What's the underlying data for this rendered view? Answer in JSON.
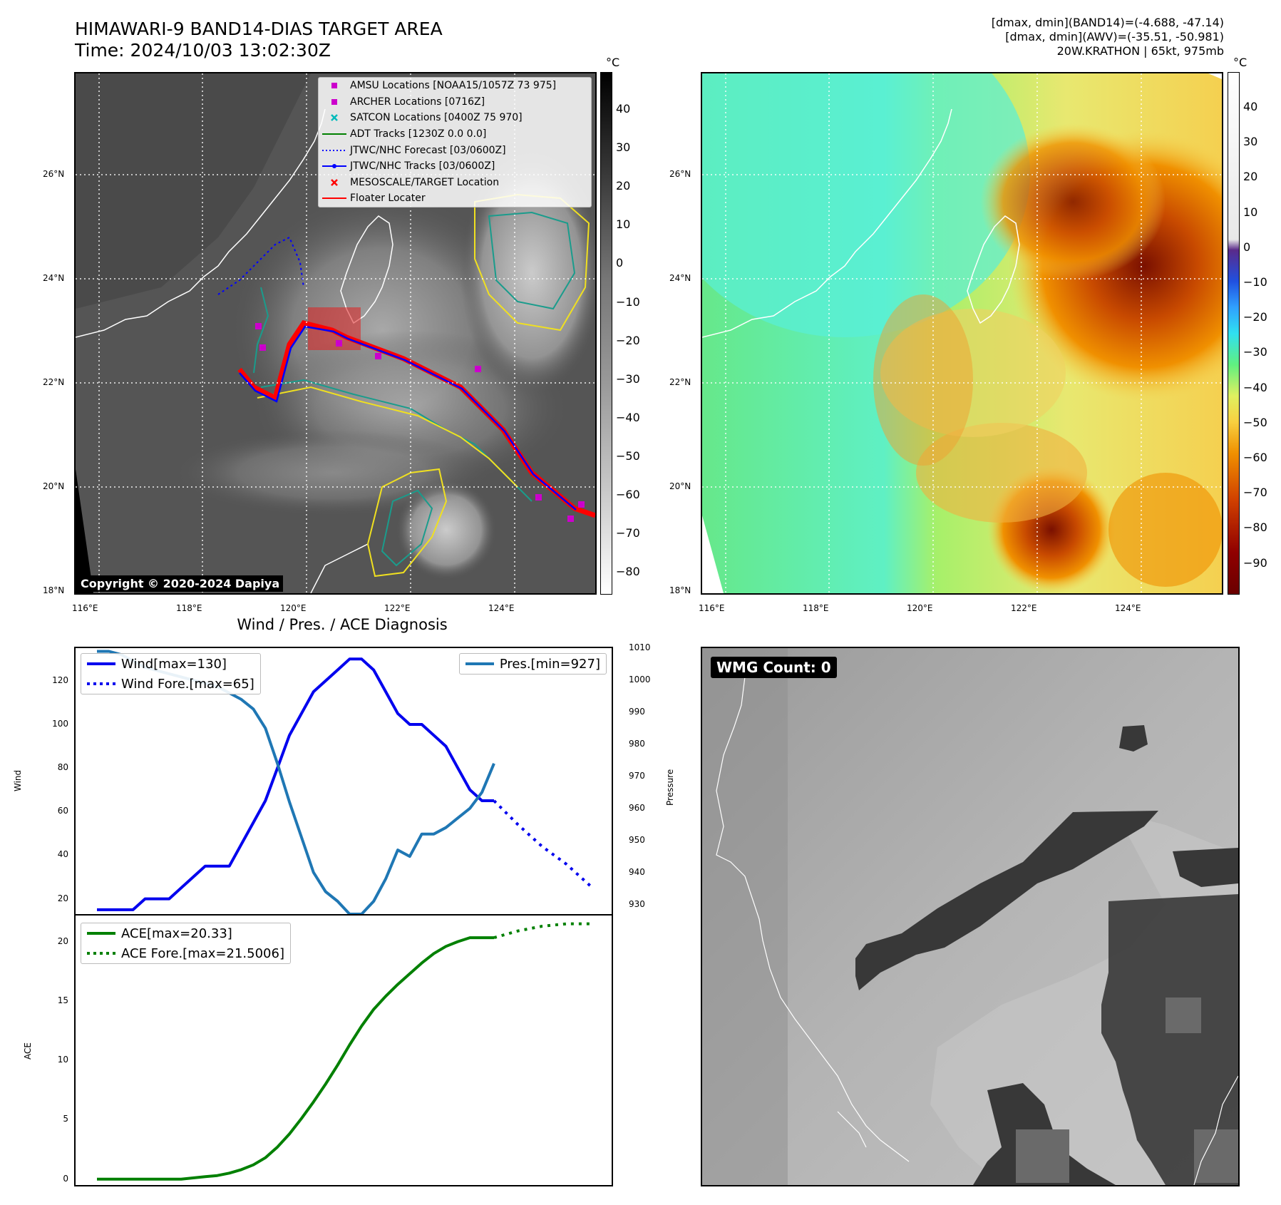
{
  "header": {
    "title_line1": "HIMAWARI-9 BAND14-DIAS TARGET AREA",
    "title_line2": "Time: 2024/10/03 13:02:30Z",
    "info_line1": "[dmax, dmin](BAND14)=(-4.688, -47.14)",
    "info_line2": "[dmax, dmin](AWV)=(-35.51, -50.981)",
    "info_line3": "20W.KRATHON | 65kt, 975mb"
  },
  "map": {
    "lon_ticks": [
      "116°E",
      "118°E",
      "120°E",
      "122°E",
      "124°E"
    ],
    "lat_ticks": [
      "26°N",
      "24°N",
      "22°N",
      "20°N",
      "18°N"
    ],
    "copyright": "Copyright © 2020-2024 Dapiya",
    "legend": [
      {
        "label": "AMSU Locations [NOAA15/1057Z 73 975]",
        "color": "#cc00cc",
        "symbol": "square"
      },
      {
        "label": "ARCHER Locations [0716Z]",
        "color": "#cc00cc",
        "symbol": "square"
      },
      {
        "label": "SATCON Locations [0400Z 75 970]",
        "color": "#00bbbb",
        "symbol": "x"
      },
      {
        "label": "ADT Tracks [1230Z 0.0 0.0]",
        "color": "#008000",
        "symbol": "line"
      },
      {
        "label": "JTWC/NHC Forecast [03/0600Z]",
        "color": "#0000ff",
        "symbol": "dotted"
      },
      {
        "label": "JTWC/NHC Tracks [03/0600Z]",
        "color": "#0000ff",
        "symbol": "line-dot"
      },
      {
        "label": "MESOSCALE/TARGET Location",
        "color": "#ff0000",
        "symbol": "x"
      },
      {
        "label": "Floater Locater",
        "color": "#ff0000",
        "symbol": "line"
      }
    ]
  },
  "colorbar_gray": {
    "unit": "°C",
    "ticks": [
      "40",
      "30",
      "20",
      "10",
      "0",
      "−10",
      "−20",
      "−30",
      "−40",
      "−50",
      "−60",
      "−70",
      "−80"
    ]
  },
  "colorbar_awv": {
    "unit": "°C",
    "ticks": [
      "40",
      "30",
      "20",
      "10",
      "0",
      "−10",
      "−20",
      "−30",
      "−40",
      "−50",
      "−60",
      "−70",
      "−80",
      "−90"
    ]
  },
  "diag": {
    "title": "Wind / Pres. / ACE Diagnosis",
    "wind_ylabel": "Wind",
    "pres_ylabel": "Pressure",
    "ace_ylabel": "ACE",
    "wind_ticks": [
      "120",
      "100",
      "80",
      "60",
      "40",
      "20"
    ],
    "pres_ticks": [
      "1010",
      "1000",
      "990",
      "980",
      "970",
      "960",
      "950",
      "940",
      "930"
    ],
    "ace_ticks": [
      "20",
      "15",
      "10",
      "5",
      "0"
    ],
    "legend_wind": "Wind[max=130]",
    "legend_wind_fore": "Wind Fore.[max=65]",
    "legend_pres": "Pres.[min=927]",
    "legend_ace": "ACE[max=20.33]",
    "legend_ace_fore": "ACE Fore.[max=21.5006]"
  },
  "wmg": {
    "label": "WMG Count: 0"
  },
  "chart_data": [
    {
      "type": "line",
      "title": "Wind / Pres. / ACE Diagnosis",
      "ylabel": "Wind",
      "ylim": [
        13,
        135
      ],
      "series": [
        {
          "name": "Wind[max=130]",
          "color": "#0000ee",
          "x": [
            0,
            1,
            2,
            3,
            4,
            5,
            6,
            7,
            8,
            9,
            10,
            11,
            12,
            13,
            14,
            15,
            16,
            17,
            18,
            19,
            20,
            21,
            22,
            23,
            24,
            25,
            26,
            27,
            28,
            29,
            30,
            31,
            32,
            33
          ],
          "values": [
            15,
            15,
            15,
            15,
            20,
            20,
            20,
            25,
            30,
            35,
            35,
            35,
            45,
            55,
            65,
            80,
            95,
            105,
            115,
            120,
            125,
            130,
            130,
            125,
            115,
            105,
            100,
            100,
            95,
            90,
            80,
            70,
            65,
            65
          ]
        },
        {
          "name": "Wind Fore.[max=65]",
          "color": "#0000ee",
          "dashed": true,
          "x": [
            33,
            35,
            37,
            39,
            41
          ],
          "values": [
            65,
            54,
            44,
            36,
            26
          ]
        }
      ]
    },
    {
      "type": "line",
      "ylabel": "Pressure",
      "ylim": [
        927,
        1010
      ],
      "series": [
        {
          "name": "Pres.[min=927]",
          "color": "#1f77b4",
          "x": [
            0,
            1,
            2,
            3,
            4,
            5,
            6,
            7,
            8,
            9,
            10,
            11,
            12,
            13,
            14,
            15,
            16,
            17,
            18,
            19,
            20,
            21,
            22,
            23,
            24,
            25,
            26,
            27,
            28,
            29,
            30,
            31,
            32,
            33
          ],
          "values": [
            1009,
            1009,
            1008,
            1006,
            1004,
            1003,
            1002,
            1001,
            1000,
            999,
            998,
            996,
            994,
            991,
            985,
            974,
            962,
            951,
            940,
            934,
            931,
            927,
            927,
            931,
            938,
            947,
            945,
            952,
            952,
            954,
            957,
            960,
            965,
            974
          ]
        }
      ]
    },
    {
      "type": "line",
      "ylabel": "ACE",
      "ylim": [
        -0.5,
        22.2
      ],
      "series": [
        {
          "name": "ACE[max=20.33]",
          "color": "#008000",
          "x": [
            0,
            1,
            2,
            3,
            4,
            5,
            6,
            7,
            8,
            9,
            10,
            11,
            12,
            13,
            14,
            15,
            16,
            17,
            18,
            19,
            20,
            21,
            22,
            23,
            24,
            25,
            26,
            27,
            28,
            29,
            30,
            31,
            32,
            33
          ],
          "values": [
            0,
            0,
            0,
            0,
            0,
            0,
            0,
            0,
            0.1,
            0.2,
            0.3,
            0.5,
            0.8,
            1.2,
            1.8,
            2.7,
            3.8,
            5.1,
            6.5,
            8.0,
            9.6,
            11.3,
            12.9,
            14.3,
            15.4,
            16.4,
            17.3,
            18.2,
            19.0,
            19.6,
            20.0,
            20.33,
            20.33,
            20.33
          ]
        },
        {
          "name": "ACE Fore.[max=21.5006]",
          "color": "#008000",
          "dashed": true,
          "x": [
            33,
            35,
            37,
            39,
            41
          ],
          "values": [
            20.33,
            20.9,
            21.3,
            21.5,
            21.5006
          ]
        }
      ]
    }
  ]
}
